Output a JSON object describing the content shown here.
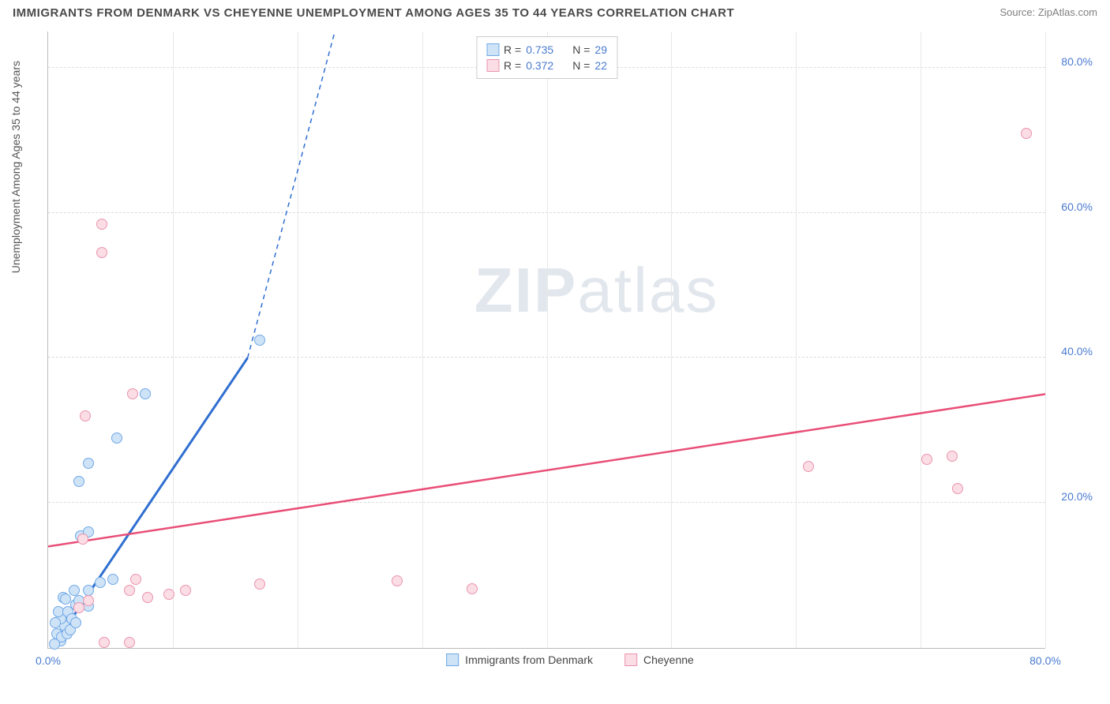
{
  "title": "IMMIGRANTS FROM DENMARK VS CHEYENNE UNEMPLOYMENT AMONG AGES 35 TO 44 YEARS CORRELATION CHART",
  "source": "Source: ZipAtlas.com",
  "watermark_a": "ZIP",
  "watermark_b": "atlas",
  "chart": {
    "type": "scatter",
    "y_axis_label": "Unemployment Among Ages 35 to 44 years",
    "xlim": [
      0,
      80
    ],
    "ylim": [
      0,
      85
    ],
    "x_ticks": [
      {
        "v": 0,
        "l": "0.0%"
      },
      {
        "v": 80,
        "l": "80.0%"
      }
    ],
    "y_ticks": [
      {
        "v": 20,
        "l": "20.0%"
      },
      {
        "v": 40,
        "l": "40.0%"
      },
      {
        "v": 60,
        "l": "60.0%"
      },
      {
        "v": 80,
        "l": "80.0%"
      }
    ],
    "x_gridlines": [
      10,
      20,
      30,
      40,
      50,
      60,
      70,
      80
    ],
    "background_color": "#ffffff",
    "grid_color_h": "#dcdcdc",
    "grid_color_v": "#e8e8e8",
    "axis_color": "#bbbbbb",
    "tick_label_color": "#4a7bd0",
    "series": [
      {
        "name": "Immigrants from Denmark",
        "fill": "#cfe3f7",
        "stroke": "#6fa8e6",
        "marker_radius": 7,
        "line_color": "#2f6fd0",
        "line_width": 3,
        "line_dash_extended": true,
        "trend_solid": {
          "x1": 0.5,
          "y1": 0.5,
          "x2": 16,
          "y2": 40
        },
        "trend_dash": {
          "x1": 16,
          "y1": 40,
          "x2": 23,
          "y2": 85
        },
        "points": [
          {
            "x": 1,
            "y": 1
          },
          {
            "x": 0.7,
            "y": 2
          },
          {
            "x": 1.3,
            "y": 3
          },
          {
            "x": 1,
            "y": 4
          },
          {
            "x": 0.8,
            "y": 5
          },
          {
            "x": 1.6,
            "y": 5
          },
          {
            "x": 2.2,
            "y": 6
          },
          {
            "x": 1.2,
            "y": 7
          },
          {
            "x": 0.6,
            "y": 3.5
          },
          {
            "x": 1.9,
            "y": 4
          },
          {
            "x": 2.1,
            "y": 8
          },
          {
            "x": 1.1,
            "y": 1.5
          },
          {
            "x": 0.5,
            "y": 0.5
          },
          {
            "x": 2.5,
            "y": 6.5
          },
          {
            "x": 3.2,
            "y": 8
          },
          {
            "x": 4.2,
            "y": 9
          },
          {
            "x": 3.2,
            "y": 5.8
          },
          {
            "x": 5.2,
            "y": 9.5
          },
          {
            "x": 2.6,
            "y": 15.5
          },
          {
            "x": 3.2,
            "y": 16
          },
          {
            "x": 2.5,
            "y": 23
          },
          {
            "x": 3.2,
            "y": 25.5
          },
          {
            "x": 5.5,
            "y": 29
          },
          {
            "x": 7.8,
            "y": 35
          },
          {
            "x": 17,
            "y": 42.5
          },
          {
            "x": 1.5,
            "y": 2
          },
          {
            "x": 1.8,
            "y": 2.5
          },
          {
            "x": 2.2,
            "y": 3.5
          },
          {
            "x": 1.4,
            "y": 6.7
          }
        ]
      },
      {
        "name": "Cheyenne",
        "fill": "#fbdde5",
        "stroke": "#ea94ae",
        "marker_radius": 7,
        "line_color": "#e94e77",
        "line_width": 2.5,
        "trend_solid": {
          "x1": 0,
          "y1": 14,
          "x2": 80,
          "y2": 35
        },
        "points": [
          {
            "x": 4.5,
            "y": 0.8
          },
          {
            "x": 6.5,
            "y": 0.8
          },
          {
            "x": 3.2,
            "y": 6.5
          },
          {
            "x": 6.5,
            "y": 8
          },
          {
            "x": 8,
            "y": 7
          },
          {
            "x": 2.8,
            "y": 15
          },
          {
            "x": 7,
            "y": 9.5
          },
          {
            "x": 11,
            "y": 8
          },
          {
            "x": 17,
            "y": 8.8
          },
          {
            "x": 28,
            "y": 9.3
          },
          {
            "x": 34,
            "y": 8.2
          },
          {
            "x": 6.8,
            "y": 35
          },
          {
            "x": 3,
            "y": 32
          },
          {
            "x": 4.3,
            "y": 54.5
          },
          {
            "x": 4.3,
            "y": 58.5
          },
          {
            "x": 61,
            "y": 25
          },
          {
            "x": 70.5,
            "y": 26
          },
          {
            "x": 72.5,
            "y": 26.5
          },
          {
            "x": 73,
            "y": 22
          },
          {
            "x": 78.5,
            "y": 71
          },
          {
            "x": 2.5,
            "y": 5.5
          },
          {
            "x": 9.7,
            "y": 7.4
          }
        ]
      }
    ],
    "legend_top": [
      {
        "swatch_fill": "#cfe3f7",
        "swatch_stroke": "#6fa8e6",
        "r_label": "R =",
        "r_val": "0.735",
        "n_label": "N =",
        "n_val": "29"
      },
      {
        "swatch_fill": "#fbdde5",
        "swatch_stroke": "#ea94ae",
        "r_label": "R =",
        "r_val": "0.372",
        "n_label": "N =",
        "n_val": "22"
      }
    ],
    "legend_bottom": [
      {
        "swatch_fill": "#cfe3f7",
        "swatch_stroke": "#6fa8e6",
        "label": "Immigrants from Denmark"
      },
      {
        "swatch_fill": "#fbdde5",
        "swatch_stroke": "#ea94ae",
        "label": "Cheyenne"
      }
    ]
  }
}
